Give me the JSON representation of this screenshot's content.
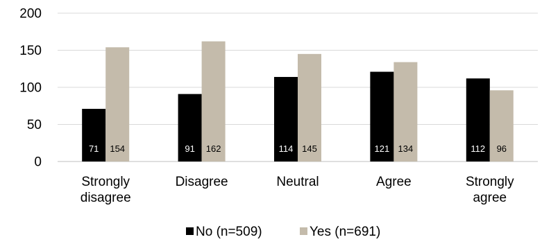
{
  "chart_data": {
    "type": "bar",
    "title": "",
    "xlabel": "",
    "ylabel": "",
    "categories": [
      [
        "Strongly",
        "disagree"
      ],
      [
        "Disagree"
      ],
      [
        "Neutral"
      ],
      [
        "Agree"
      ],
      [
        "Strongly",
        "agree"
      ]
    ],
    "series": [
      {
        "name": "No (n=509)",
        "values": [
          71,
          91,
          114,
          121,
          112
        ],
        "color": "#000000",
        "label_color": "#ffffff"
      },
      {
        "name": "Yes (n=691)",
        "values": [
          154,
          162,
          145,
          134,
          96
        ],
        "color": "#c4bbab",
        "label_color": "#000000"
      }
    ],
    "ylim": [
      0,
      200
    ],
    "yticks": [
      0,
      50,
      100,
      150,
      200
    ],
    "grid": true,
    "legend_position": "bottom"
  }
}
